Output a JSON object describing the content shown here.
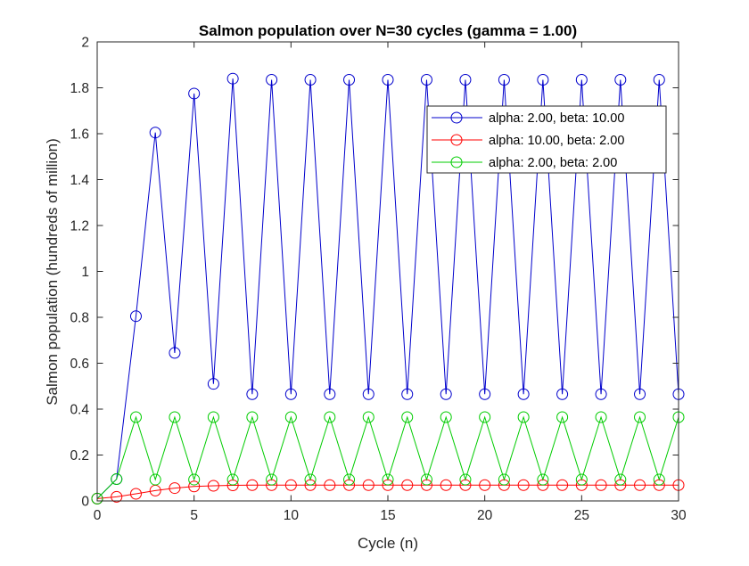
{
  "chart_data": {
    "type": "line",
    "title": "Salmon population over N=30 cycles (gamma = 1.00)",
    "xlabel": "Cycle (n)",
    "ylabel": "Salmon population (hundreds of million)",
    "xlim": [
      0,
      30
    ],
    "ylim": [
      0,
      2
    ],
    "xticks": [
      0,
      5,
      10,
      15,
      20,
      25,
      30
    ],
    "yticks": [
      0,
      0.2,
      0.4,
      0.6,
      0.8,
      1,
      1.2,
      1.4,
      1.6,
      1.8,
      2
    ],
    "xtick_labels": [
      "0",
      "5",
      "10",
      "15",
      "20",
      "25",
      "30"
    ],
    "ytick_labels": [
      "0",
      "0.2",
      "0.4",
      "0.6",
      "0.8",
      "1",
      "1.2",
      "1.4",
      "1.6",
      "1.8",
      "2"
    ],
    "grid": false,
    "legend_position": "top-right",
    "marker": "circle",
    "x": [
      0,
      1,
      2,
      3,
      4,
      5,
      6,
      7,
      8,
      9,
      10,
      11,
      12,
      13,
      14,
      15,
      16,
      17,
      18,
      19,
      20,
      21,
      22,
      23,
      24,
      25,
      26,
      27,
      28,
      29,
      30
    ],
    "series": [
      {
        "name": "alpha: 2.00, beta: 10.00",
        "color": "#0000cc",
        "values": [
          0.01,
          0.095,
          0.805,
          1.605,
          0.645,
          1.775,
          0.51,
          1.84,
          0.465,
          1.835,
          0.465,
          1.835,
          0.465,
          1.835,
          0.465,
          1.835,
          0.465,
          1.835,
          0.465,
          1.835,
          0.465,
          1.835,
          0.465,
          1.835,
          0.465,
          1.835,
          0.465,
          1.835,
          0.465,
          1.835,
          0.465
        ]
      },
      {
        "name": "alpha: 10.00, beta: 2.00",
        "color": "#ff0000",
        "values": [
          0.01,
          0.018,
          0.031,
          0.045,
          0.056,
          0.063,
          0.066,
          0.068,
          0.069,
          0.069,
          0.069,
          0.069,
          0.069,
          0.069,
          0.069,
          0.069,
          0.069,
          0.069,
          0.069,
          0.069,
          0.069,
          0.069,
          0.069,
          0.069,
          0.069,
          0.069,
          0.069,
          0.069,
          0.069,
          0.069,
          0.069
        ]
      },
      {
        "name": "alpha: 2.00, beta: 2.00",
        "color": "#00cc00",
        "values": [
          0.01,
          0.095,
          0.365,
          0.093,
          0.365,
          0.093,
          0.365,
          0.093,
          0.365,
          0.093,
          0.365,
          0.093,
          0.365,
          0.093,
          0.365,
          0.093,
          0.365,
          0.093,
          0.365,
          0.093,
          0.365,
          0.093,
          0.365,
          0.093,
          0.365,
          0.093,
          0.365,
          0.093,
          0.365,
          0.093,
          0.365
        ]
      }
    ]
  }
}
